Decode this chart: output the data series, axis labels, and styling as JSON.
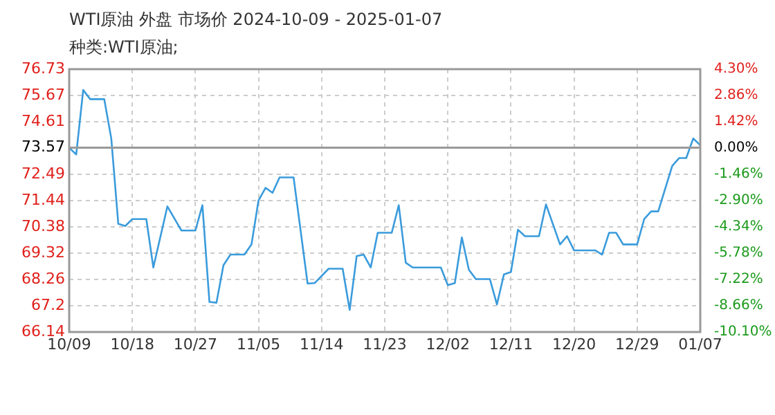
{
  "chart_data": {
    "type": "line",
    "title": "WTI原油 外盘 市场价 2024-10-09 - 2025-01-07",
    "subtitle": "种类:WTI原油;",
    "x": [
      "2024-10-09",
      "2024-10-10",
      "2024-10-11",
      "2024-10-12",
      "2024-10-14",
      "2024-10-15",
      "2024-10-16",
      "2024-10-17",
      "2024-10-18",
      "2024-10-20",
      "2024-10-21",
      "2024-10-23",
      "2024-10-25",
      "2024-10-27",
      "2024-10-28",
      "2024-10-29",
      "2024-10-30",
      "2024-10-31",
      "2024-11-01",
      "2024-11-03",
      "2024-11-04",
      "2024-11-05",
      "2024-11-06",
      "2024-11-07",
      "2024-11-08",
      "2024-11-10",
      "2024-11-12",
      "2024-11-13",
      "2024-11-15",
      "2024-11-17",
      "2024-11-18",
      "2024-11-19",
      "2024-11-20",
      "2024-11-21",
      "2024-11-22",
      "2024-11-24",
      "2024-11-25",
      "2024-11-26",
      "2024-11-27",
      "2024-12-01",
      "2024-12-02",
      "2024-12-03",
      "2024-12-04",
      "2024-12-05",
      "2024-12-06",
      "2024-12-08",
      "2024-12-09",
      "2024-12-10",
      "2024-12-11",
      "2024-12-12",
      "2024-12-13",
      "2024-12-15",
      "2024-12-16",
      "2024-12-18",
      "2024-12-19",
      "2024-12-20",
      "2024-12-23",
      "2024-12-24",
      "2024-12-25",
      "2024-12-26",
      "2024-12-27",
      "2024-12-29",
      "2024-12-30",
      "2024-12-31",
      "2025-01-01",
      "2025-01-03",
      "2025-01-04",
      "2025-01-05",
      "2025-01-06",
      "2025-01-07"
    ],
    "series": [
      {
        "color": "#3a9bdc",
        "values": [
          73.57,
          73.29,
          75.89,
          75.52,
          75.52,
          73.94,
          70.5,
          70.41,
          70.69,
          70.69,
          68.74,
          71.2,
          70.23,
          70.23,
          71.25,
          67.35,
          67.32,
          68.83,
          69.26,
          69.26,
          69.67,
          71.44,
          71.95,
          71.75,
          72.37,
          72.37,
          68.09,
          68.11,
          68.69,
          68.69,
          67.03,
          69.2,
          69.26,
          68.74,
          70.14,
          70.14,
          71.25,
          68.93,
          68.74,
          68.74,
          68.03,
          68.11,
          69.95,
          68.65,
          68.27,
          68.27,
          67.25,
          68.46,
          68.56,
          70.26,
          70.0,
          70.0,
          71.28,
          69.67,
          70.0,
          69.43,
          69.43,
          69.26,
          70.14,
          70.14,
          69.67,
          69.67,
          70.69,
          71.0,
          71.0,
          72.83,
          73.15,
          73.15,
          73.94,
          73.66
        ]
      }
    ],
    "xlim": [
      "2024-10-09",
      "2025-01-07"
    ],
    "xticks": [
      {
        "value": "2024-10-09",
        "label": "10/09"
      },
      {
        "value": "2024-10-18",
        "label": "10/18"
      },
      {
        "value": "2024-10-27",
        "label": "10/27"
      },
      {
        "value": "2024-11-05",
        "label": "11/05"
      },
      {
        "value": "2024-11-14",
        "label": "11/14"
      },
      {
        "value": "2024-11-23",
        "label": "11/23"
      },
      {
        "value": "2024-12-02",
        "label": "12/02"
      },
      {
        "value": "2024-12-11",
        "label": "12/11"
      },
      {
        "value": "2024-12-20",
        "label": "12/20"
      },
      {
        "value": "2024-12-29",
        "label": "12/29"
      },
      {
        "value": "2025-01-07",
        "label": "01/07"
      }
    ],
    "ylim": [
      66.14,
      76.73
    ],
    "yticks": [
      66.14,
      67.2,
      68.26,
      69.32,
      70.38,
      71.44,
      72.49,
      73.57,
      74.61,
      75.67,
      76.73
    ],
    "y2lim": [
      -10.1,
      4.3
    ],
    "y2ticks": [
      {
        "value": -10.1,
        "label": "-10.10%"
      },
      {
        "value": -8.66,
        "label": "-8.66%"
      },
      {
        "value": -7.22,
        "label": "-7.22%"
      },
      {
        "value": -5.78,
        "label": "-5.78%"
      },
      {
        "value": -4.34,
        "label": "-4.34%"
      },
      {
        "value": -2.9,
        "label": "-2.90%"
      },
      {
        "value": -1.46,
        "label": "-1.46%"
      },
      {
        "value": 0,
        "label": "0.00%"
      },
      {
        "value": 1.42,
        "label": "1.42%"
      },
      {
        "value": 2.86,
        "label": "2.86%"
      },
      {
        "value": 4.3,
        "label": "4.30%"
      }
    ],
    "ref_lines": [
      {
        "axis": "y",
        "value": 73.57,
        "color": "#999999"
      }
    ],
    "grid": true,
    "legend": false,
    "marker": "none",
    "line_style": "solid"
  }
}
